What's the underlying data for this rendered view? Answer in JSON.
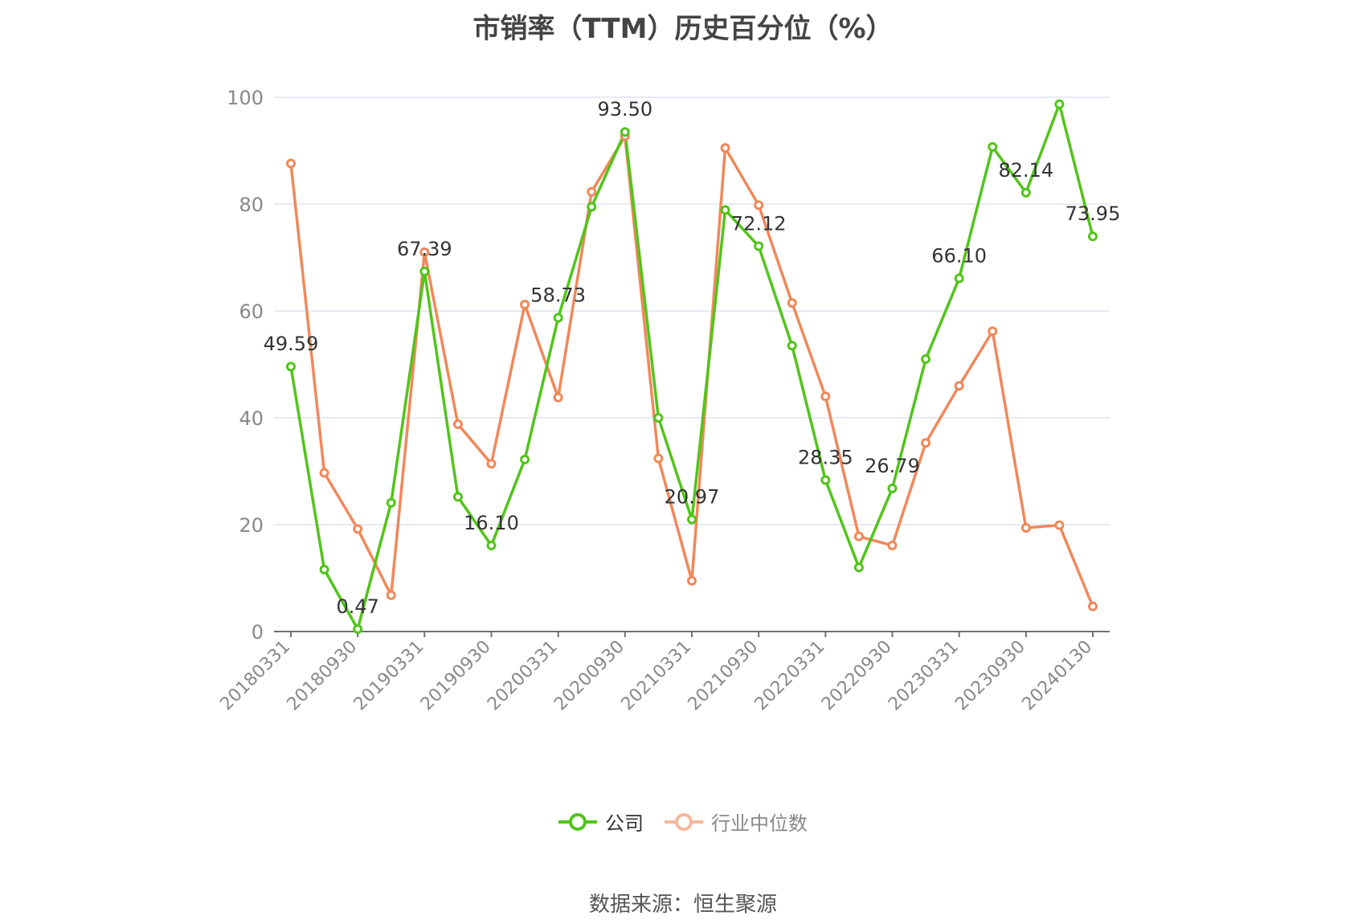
{
  "chart_data": {
    "type": "line",
    "title": "市销率（TTM）历史百分位（%）",
    "source": "数据来源：恒生聚源",
    "ylim": [
      0,
      100
    ],
    "yticks": [
      0,
      20,
      40,
      60,
      80,
      100
    ],
    "x": [
      "20180331",
      "20180630",
      "20180930",
      "20181231",
      "20190331",
      "20190630",
      "20190930",
      "20191231",
      "20200331",
      "20200630",
      "20200930",
      "20201231",
      "20210331",
      "20210630",
      "20210930",
      "20211231",
      "20220331",
      "20220630",
      "20220930",
      "20221231",
      "20230331",
      "20230630",
      "20230930",
      "20231231",
      "20240130"
    ],
    "xtick_labels": [
      "20180331",
      "20180930",
      "20190331",
      "20190930",
      "20200331",
      "20200930",
      "20210331",
      "20210930",
      "20220331",
      "20220930",
      "20230331",
      "20230930",
      "20240130"
    ],
    "legend_position": "bottom",
    "grid": true,
    "series": [
      {
        "name": "公司",
        "color": "#52c41a",
        "values": [
          49.59,
          11.6,
          0.47,
          24.1,
          67.39,
          25.2,
          16.1,
          32.2,
          58.73,
          79.5,
          93.5,
          40.0,
          20.97,
          78.9,
          72.12,
          53.5,
          28.35,
          12.0,
          26.79,
          51.0,
          66.1,
          90.7,
          82.14,
          98.7,
          73.95
        ],
        "labels": [
          "49.59",
          "",
          "0.47",
          "",
          "67.39",
          "",
          "16.10",
          "",
          "58.73",
          "",
          "93.50",
          "",
          "20.97",
          "",
          "72.12",
          "",
          "28.35",
          "",
          "26.79",
          "",
          "66.10",
          "",
          "82.14",
          "",
          "73.95"
        ]
      },
      {
        "name": "行业中位数",
        "color": "#f0885a",
        "values": [
          87.6,
          29.7,
          19.2,
          6.8,
          71.0,
          38.8,
          31.4,
          61.2,
          43.8,
          82.3,
          92.7,
          32.4,
          9.5,
          90.5,
          79.8,
          61.5,
          44.0,
          17.8,
          16.1,
          35.3,
          46.0,
          56.2,
          19.4,
          19.9,
          4.7
        ]
      }
    ]
  }
}
